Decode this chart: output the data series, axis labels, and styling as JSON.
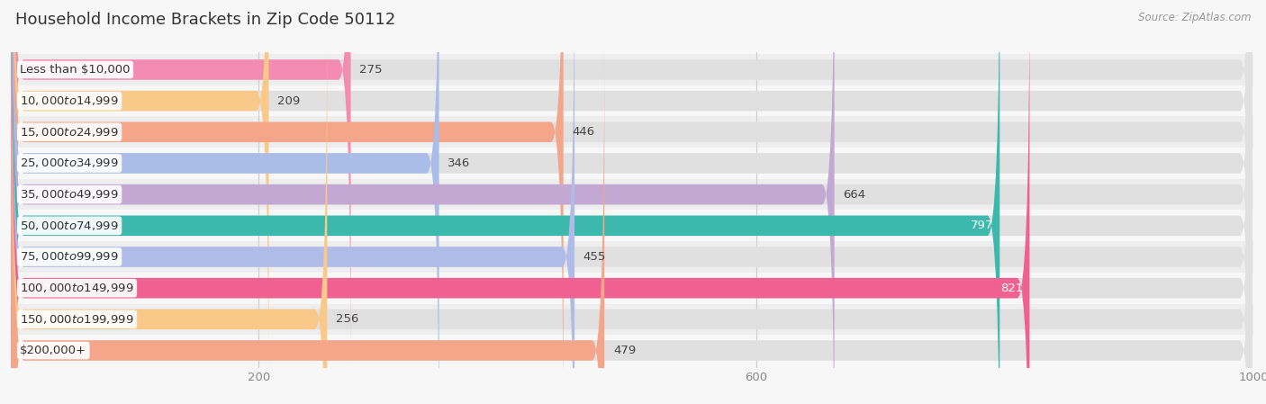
{
  "title": "Household Income Brackets in Zip Code 50112",
  "source": "Source: ZipAtlas.com",
  "categories": [
    "Less than $10,000",
    "$10,000 to $14,999",
    "$15,000 to $24,999",
    "$25,000 to $34,999",
    "$35,000 to $49,999",
    "$50,000 to $74,999",
    "$75,000 to $99,999",
    "$100,000 to $149,999",
    "$150,000 to $199,999",
    "$200,000+"
  ],
  "values": [
    275,
    209,
    446,
    346,
    664,
    797,
    455,
    821,
    256,
    479
  ],
  "colors": [
    "#f48cb1",
    "#f9c98a",
    "#f4a58a",
    "#aabce8",
    "#c3a8d4",
    "#3db8ac",
    "#b0bce8",
    "#f06090",
    "#f9c98a",
    "#f4a58a"
  ],
  "bar_label_colors": [
    "#555555",
    "#555555",
    "#555555",
    "#555555",
    "#555555",
    "#ffffff",
    "#555555",
    "#ffffff",
    "#555555",
    "#555555"
  ],
  "xmax": 1000,
  "xticks": [
    200,
    600,
    1000
  ],
  "bg_color": "#f7f7f7",
  "row_alt_color": "#eeeeee",
  "row_base_color": "#f7f7f7",
  "bar_bg_color": "#e0e0e0",
  "title_fontsize": 13,
  "label_fontsize": 9.5,
  "value_fontsize": 9.5,
  "source_fontsize": 8.5
}
